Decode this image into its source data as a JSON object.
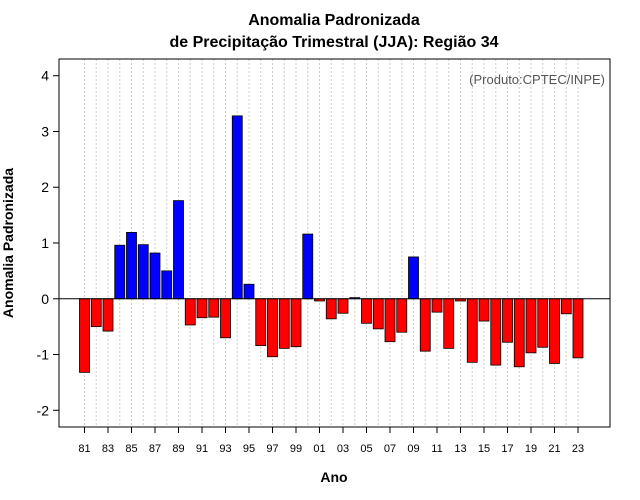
{
  "chart_data": {
    "type": "bar",
    "title_line1": "Anomalia Padronizada",
    "title_line2": "de Precipitação Trimestral (JJA): Região 34",
    "xlabel": "Ano",
    "ylabel": "Anomalia Padronizada",
    "credit": "(Produto:CPTEC/INPE)",
    "ylim": [
      -2.3,
      4.3
    ],
    "yticks": [
      -2,
      -1,
      0,
      1,
      2,
      3,
      4
    ],
    "ytick_labels": [
      "-2",
      "-1",
      "0",
      "1",
      "2",
      "3",
      "4"
    ],
    "grid": "vertical-dotted",
    "categories": [
      "81",
      "82",
      "83",
      "84",
      "85",
      "86",
      "87",
      "88",
      "89",
      "90",
      "91",
      "92",
      "93",
      "94",
      "95",
      "96",
      "97",
      "98",
      "99",
      "00",
      "01",
      "02",
      "03",
      "04",
      "05",
      "06",
      "07",
      "08",
      "09",
      "10",
      "11",
      "12",
      "13",
      "14",
      "15",
      "16",
      "17",
      "18",
      "19",
      "20",
      "21",
      "22",
      "23"
    ],
    "xtick_labels": [
      "81",
      "83",
      "85",
      "87",
      "89",
      "91",
      "93",
      "95",
      "97",
      "99",
      "01",
      "03",
      "05",
      "07",
      "09",
      "11",
      "13",
      "15",
      "17",
      "19",
      "21",
      "23"
    ],
    "values": [
      -1.32,
      -0.5,
      -0.58,
      0.96,
      1.19,
      0.97,
      0.82,
      0.5,
      1.76,
      -0.47,
      -0.34,
      -0.33,
      -0.7,
      3.28,
      0.26,
      -0.84,
      -1.04,
      -0.89,
      -0.86,
      1.16,
      -0.04,
      -0.36,
      -0.26,
      0.02,
      -0.44,
      -0.54,
      -0.77,
      -0.6,
      0.75,
      -0.94,
      -0.24,
      -0.89,
      -0.04,
      -1.14,
      -0.4,
      -1.19,
      -0.78,
      -1.22,
      -0.97,
      -0.87,
      -1.16,
      -0.27,
      -1.06
    ],
    "colors": {
      "positive": "#0000ff",
      "negative": "#ff0000",
      "outline": "#000000",
      "grid": "#cccccc",
      "zero_line": "#000000"
    }
  }
}
